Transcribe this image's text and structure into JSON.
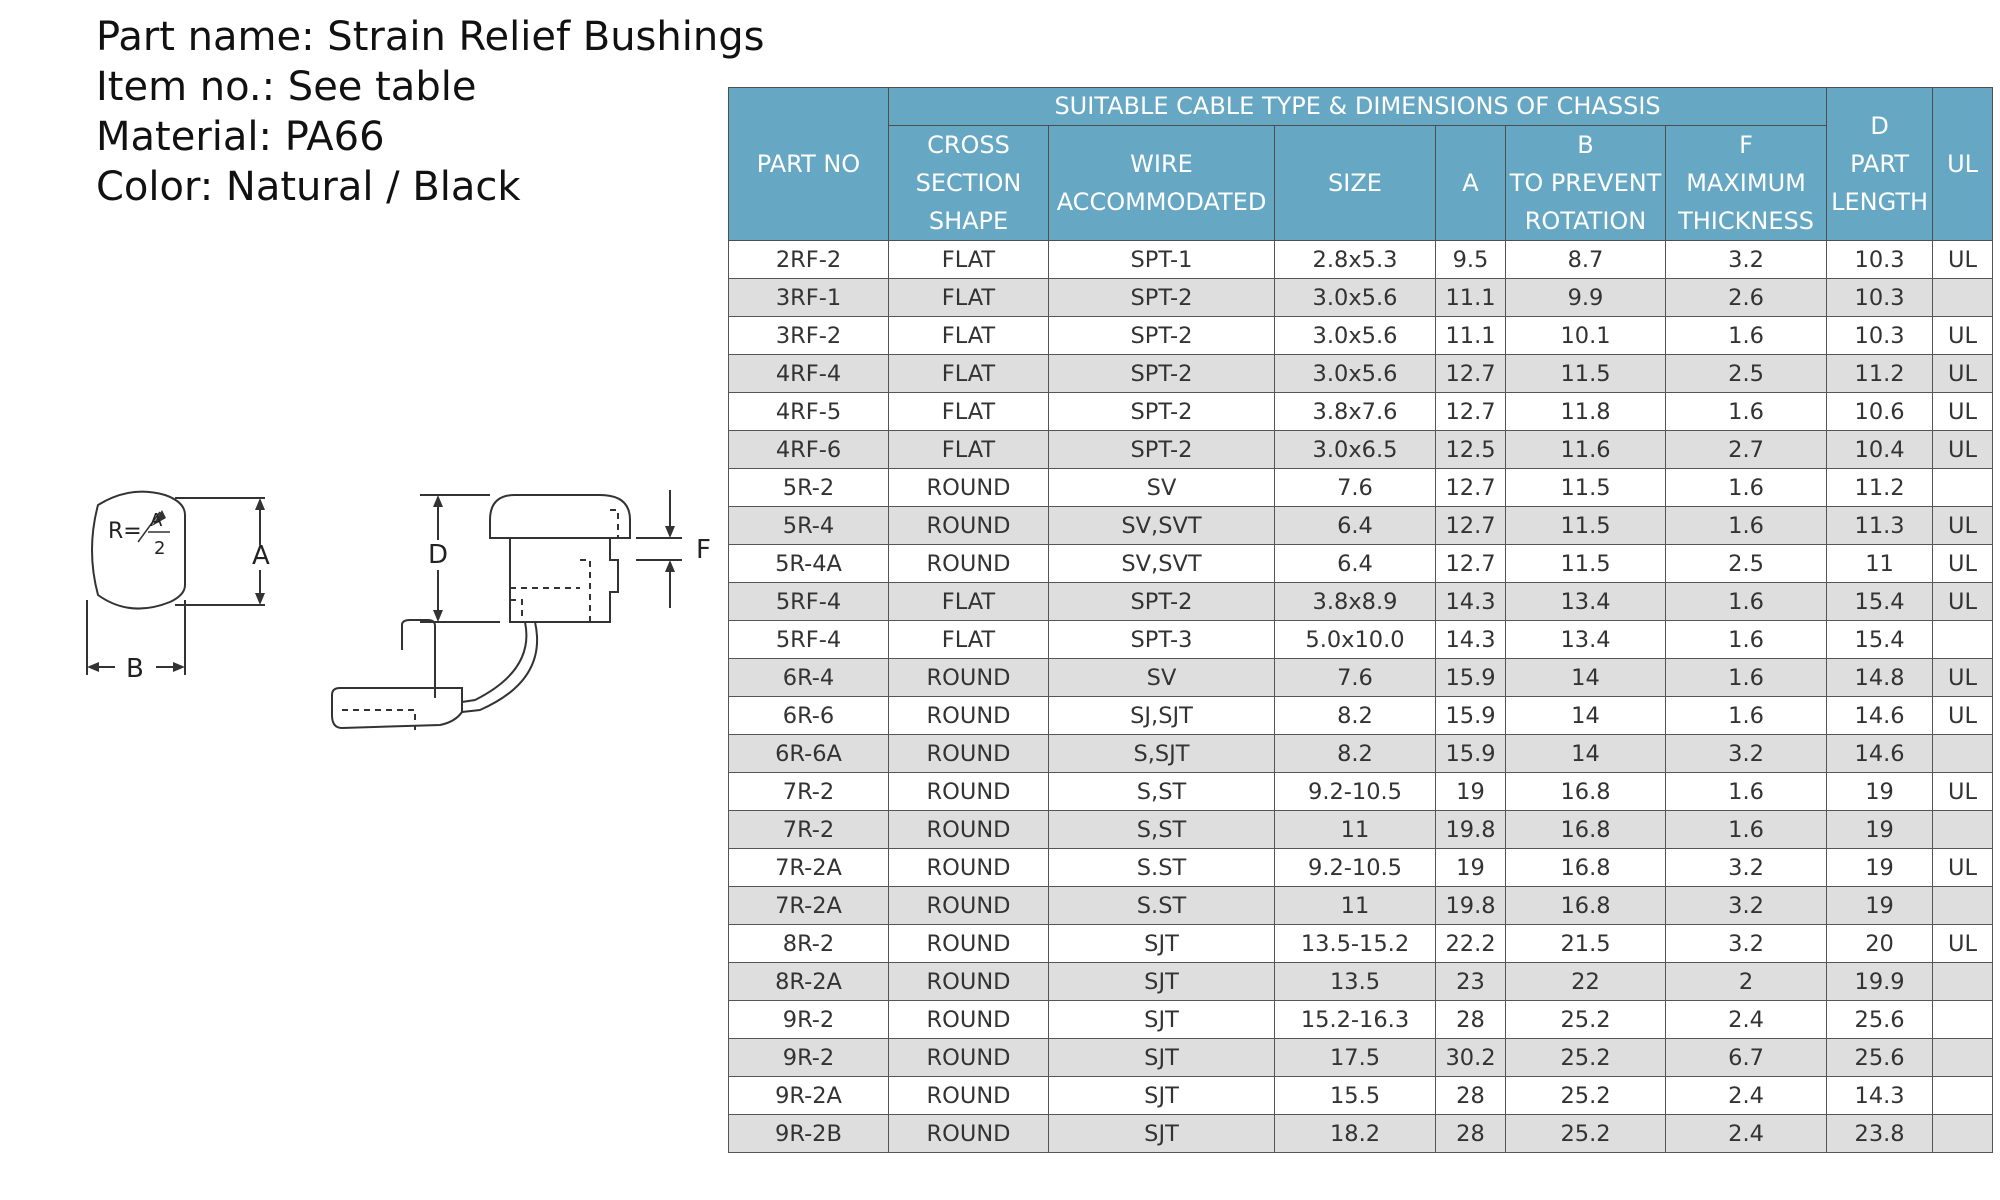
{
  "header": {
    "lines": [
      "Part name: Strain Relief Bushings",
      "Item no.: See table",
      "Material: PA66",
      "Color: Natural / Black"
    ]
  },
  "drawing": {
    "label_r": "R=",
    "label_r_num": "A",
    "label_r_den": "2",
    "label_a": "A",
    "label_b": "B",
    "label_d": "D",
    "label_f": "F"
  },
  "table": {
    "head": {
      "part_no": "PART NO",
      "group": "SUITABLE CABLE TYPE & DIMENSIONS OF CHASSIS",
      "cross_section": [
        "CROSS",
        "SECTION",
        "SHAPE"
      ],
      "wire": [
        "WIRE",
        "ACCOMMODATED"
      ],
      "size": "SIZE",
      "a": "A",
      "b": [
        "B",
        "TO PREVENT",
        "ROTATION"
      ],
      "f": [
        "F",
        "MAXIMUM",
        "THICKNESS"
      ],
      "d": [
        "D",
        "PART",
        "LENGTH"
      ],
      "ul": "UL"
    },
    "rows": [
      [
        "2RF-2",
        "FLAT",
        "SPT-1",
        "2.8x5.3",
        "9.5",
        "8.7",
        "3.2",
        "10.3",
        "UL"
      ],
      [
        "3RF-1",
        "FLAT",
        "SPT-2",
        "3.0x5.6",
        "11.1",
        "9.9",
        "2.6",
        "10.3",
        ""
      ],
      [
        "3RF-2",
        "FLAT",
        "SPT-2",
        "3.0x5.6",
        "11.1",
        "10.1",
        "1.6",
        "10.3",
        "UL"
      ],
      [
        "4RF-4",
        "FLAT",
        "SPT-2",
        "3.0x5.6",
        "12.7",
        "11.5",
        "2.5",
        "11.2",
        "UL"
      ],
      [
        "4RF-5",
        "FLAT",
        "SPT-2",
        "3.8x7.6",
        "12.7",
        "11.8",
        "1.6",
        "10.6",
        "UL"
      ],
      [
        "4RF-6",
        "FLAT",
        "SPT-2",
        "3.0x6.5",
        "12.5",
        "11.6",
        "2.7",
        "10.4",
        "UL"
      ],
      [
        "5R-2",
        "ROUND",
        "SV",
        "7.6",
        "12.7",
        "11.5",
        "1.6",
        "11.2",
        ""
      ],
      [
        "5R-4",
        "ROUND",
        "SV,SVT",
        "6.4",
        "12.7",
        "11.5",
        "1.6",
        "11.3",
        "UL"
      ],
      [
        "5R-4A",
        "ROUND",
        "SV,SVT",
        "6.4",
        "12.7",
        "11.5",
        "2.5",
        "11",
        "UL"
      ],
      [
        "5RF-4",
        "FLAT",
        "SPT-2",
        "3.8x8.9",
        "14.3",
        "13.4",
        "1.6",
        "15.4",
        "UL"
      ],
      [
        "5RF-4",
        "FLAT",
        "SPT-3",
        "5.0x10.0",
        "14.3",
        "13.4",
        "1.6",
        "15.4",
        ""
      ],
      [
        "6R-4",
        "ROUND",
        "SV",
        "7.6",
        "15.9",
        "14",
        "1.6",
        "14.8",
        "UL"
      ],
      [
        "6R-6",
        "ROUND",
        "SJ,SJT",
        "8.2",
        "15.9",
        "14",
        "1.6",
        "14.6",
        "UL"
      ],
      [
        "6R-6A",
        "ROUND",
        "S,SJT",
        "8.2",
        "15.9",
        "14",
        "3.2",
        "14.6",
        ""
      ],
      [
        "7R-2",
        "ROUND",
        "S,ST",
        "9.2-10.5",
        "19",
        "16.8",
        "1.6",
        "19",
        "UL"
      ],
      [
        "7R-2",
        "ROUND",
        "S,ST",
        "11",
        "19.8",
        "16.8",
        "1.6",
        "19",
        ""
      ],
      [
        "7R-2A",
        "ROUND",
        "S.ST",
        "9.2-10.5",
        "19",
        "16.8",
        "3.2",
        "19",
        "UL"
      ],
      [
        "7R-2A",
        "ROUND",
        "S.ST",
        "11",
        "19.8",
        "16.8",
        "3.2",
        "19",
        ""
      ],
      [
        "8R-2",
        "ROUND",
        "SJT",
        "13.5-15.2",
        "22.2",
        "21.5",
        "3.2",
        "20",
        "UL"
      ],
      [
        "8R-2A",
        "ROUND",
        "SJT",
        "13.5",
        "23",
        "22",
        "2",
        "19.9",
        ""
      ],
      [
        "9R-2",
        "ROUND",
        "SJT",
        "15.2-16.3",
        "28",
        "25.2",
        "2.4",
        "25.6",
        ""
      ],
      [
        "9R-2",
        "ROUND",
        "SJT",
        "17.5",
        "30.2",
        "25.2",
        "6.7",
        "25.6",
        ""
      ],
      [
        "9R-2A",
        "ROUND",
        "SJT",
        "15.5",
        "28",
        "25.2",
        "2.4",
        "14.3",
        ""
      ],
      [
        "9R-2B",
        "ROUND",
        "SJT",
        "18.2",
        "28",
        "25.2",
        "2.4",
        "23.8",
        ""
      ]
    ]
  }
}
